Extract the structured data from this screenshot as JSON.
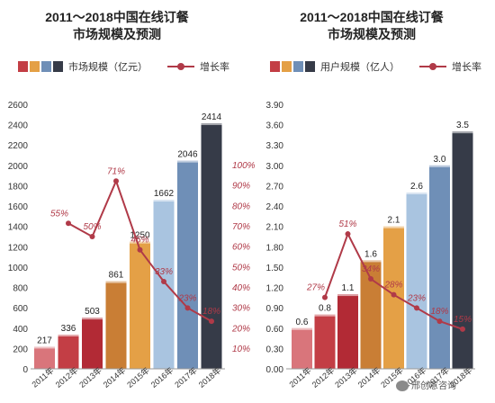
{
  "chart_data": [
    {
      "type": "bar",
      "title": "2011～2018中国在线订餐",
      "subtitle": "市场规模及预测",
      "categories": [
        "2011年",
        "2012年",
        "2013年",
        "2014年",
        "2015年",
        "2016年",
        "2017年",
        "2018年"
      ],
      "series": [
        {
          "name": "市场规模（亿元）",
          "values": [
            217,
            336,
            503,
            861,
            1250,
            1662,
            2046,
            2414
          ]
        },
        {
          "name": "增长率",
          "type": "line",
          "values": [
            null,
            55,
            50,
            71,
            45,
            33,
            23,
            18
          ],
          "labels": [
            "",
            "55%",
            "50%",
            "71%",
            "45%",
            "33%",
            "23%",
            "18%"
          ]
        }
      ],
      "ylim": [
        0,
        2600
      ],
      "yticks": [
        "0",
        "200",
        "400",
        "600",
        "800",
        "1000",
        "1200",
        "1400",
        "1600",
        "1800",
        "2000",
        "2200",
        "2400",
        "2600"
      ],
      "y2lim": [
        0,
        100
      ],
      "y2ticks": [
        "10%",
        "20%",
        "30%",
        "40%",
        "50%",
        "60%",
        "70%",
        "80%",
        "90%",
        "100%"
      ],
      "legend": "top",
      "grid": false
    },
    {
      "type": "bar",
      "title": "2011～2018中国在线订餐",
      "subtitle": "市场规模及预测",
      "categories": [
        "2011年",
        "2012年",
        "2013年",
        "2014年",
        "2015年",
        "2016年",
        "2017年",
        "2018年"
      ],
      "series": [
        {
          "name": "用户规模（亿人）",
          "values": [
            0.6,
            0.8,
            1.1,
            1.6,
            2.1,
            2.6,
            3.0,
            3.5
          ]
        },
        {
          "name": "增长率",
          "type": "line",
          "values": [
            null,
            27,
            51,
            34,
            28,
            23,
            18,
            15
          ],
          "labels": [
            "",
            "27%",
            "51%",
            "34%",
            "28%",
            "23%",
            "18%",
            "15%"
          ]
        }
      ],
      "ylim": [
        0,
        3.9
      ],
      "yticks": [
        "0.00",
        "0.30",
        "0.60",
        "0.90",
        "1.20",
        "1.50",
        "1.80",
        "2.10",
        "2.40",
        "2.70",
        "3.00",
        "3.30",
        "3.60",
        "3.90"
      ],
      "value_labels": [
        "0.6",
        "0.8",
        "1.1",
        "1.6",
        "2.1",
        "2.6",
        "3.0",
        "3.5"
      ],
      "legend": "top",
      "grid": false
    }
  ],
  "palette": {
    "bars": [
      "#d9757b",
      "#c33e45",
      "#b22a35",
      "#c97e35",
      "#e4a046",
      "#a9c4e0",
      "#6f8fb7",
      "#363b48"
    ],
    "line": "#b03a48",
    "pct_text": "#b03a48"
  },
  "watermark": {
    "text": "邢创意咨询"
  }
}
